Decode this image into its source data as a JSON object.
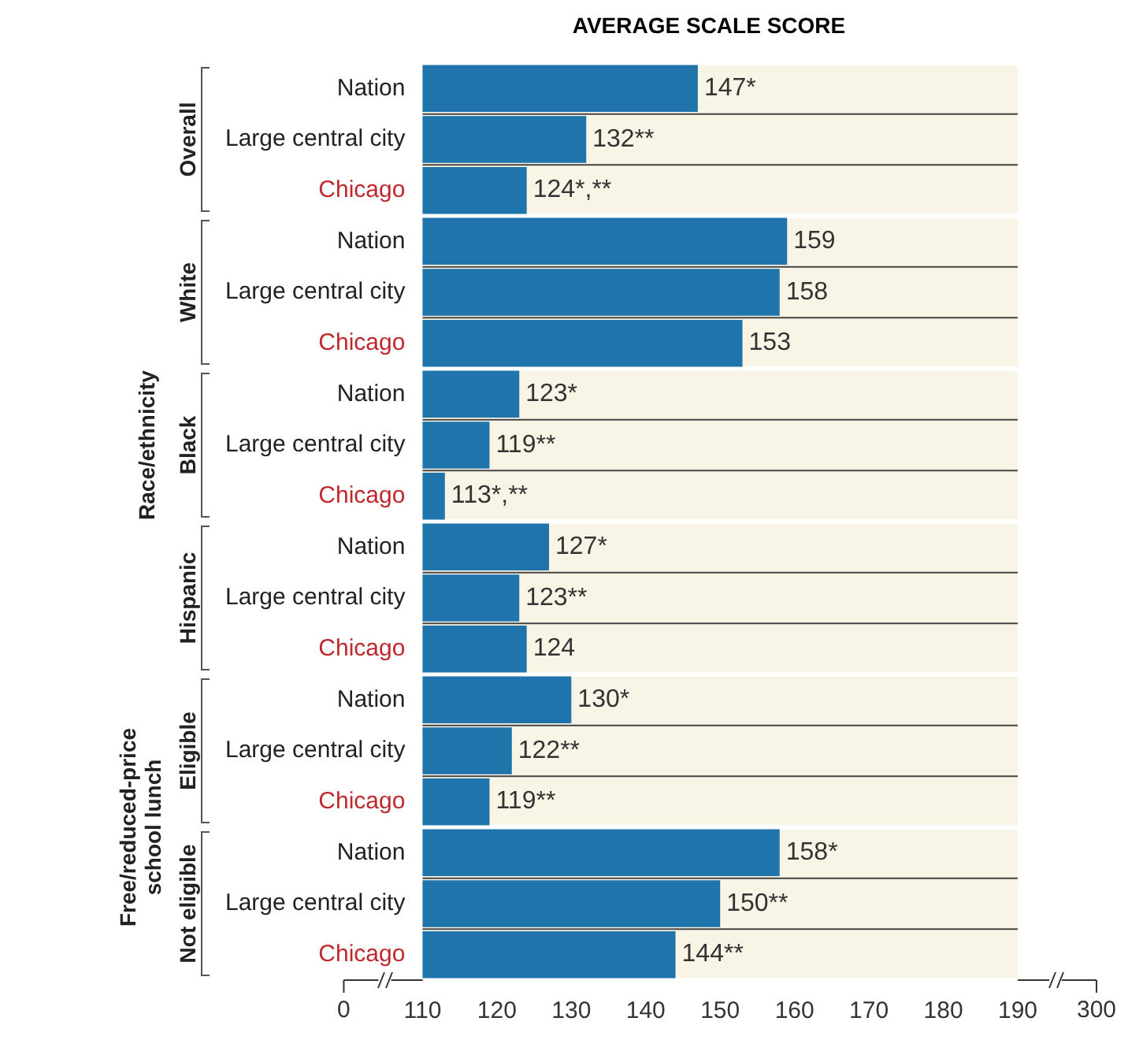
{
  "chart_data": {
    "type": "bar",
    "orientation": "horizontal",
    "title": "AVERAGE SCALE SCORE",
    "categories": [
      "Nation",
      "Large central city",
      "Chicago",
      "Nation",
      "Large central city",
      "Chicago",
      "Nation",
      "Large central city",
      "Chicago",
      "Nation",
      "Large central city",
      "Chicago",
      "Nation",
      "Large central city",
      "Chicago",
      "Nation",
      "Large central city",
      "Chicago"
    ],
    "values": [
      147,
      132,
      124,
      159,
      158,
      153,
      123,
      119,
      113,
      127,
      123,
      124,
      130,
      122,
      119,
      158,
      150,
      144
    ],
    "value_labels": [
      "147*",
      "132**",
      "124*,**",
      "159",
      "158",
      "153",
      "123*",
      "119**",
      "113*,**",
      "127*",
      "123**",
      "124",
      "130*",
      "122**",
      "119**",
      "158*",
      "150**",
      "144**"
    ],
    "color": "#1f74ab",
    "xlim": [
      110,
      190
    ],
    "xticks": [
      110,
      120,
      130,
      140,
      150,
      160,
      170,
      180,
      190
    ],
    "grid": false,
    "legend": false,
    "annotations": [
      "Overall",
      "White",
      "Black",
      "Hispanic",
      "Eligible",
      "Not eligible",
      "Race/ethnicity",
      "Free/reduced-price school lunch",
      "0",
      "300"
    ]
  }
}
